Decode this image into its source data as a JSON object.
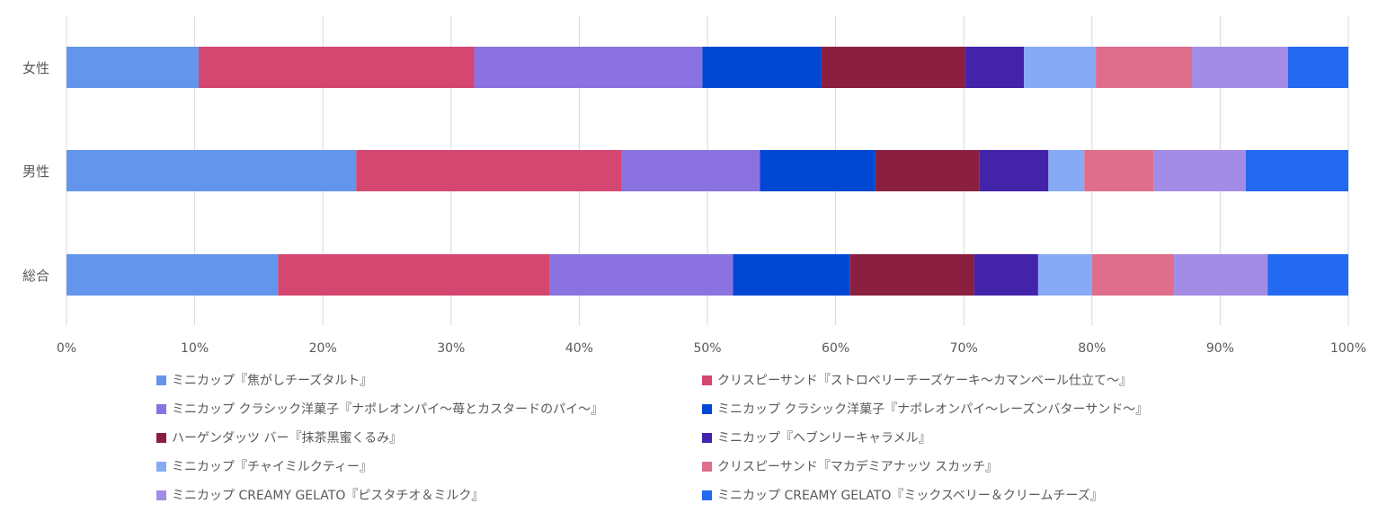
{
  "chart_data": {
    "type": "bar",
    "orientation": "horizontal",
    "stacked": "percent",
    "categories": [
      "女性",
      "男性",
      "総合"
    ],
    "x_tick_labels": [
      "0%",
      "10%",
      "20%",
      "30%",
      "40%",
      "50%",
      "60%",
      "70%",
      "80%",
      "90%",
      "100%"
    ],
    "xlim": [
      0,
      100
    ],
    "grid": true,
    "legend_position": "bottom",
    "series": [
      {
        "name": "ミニカップ『焦がしチーズタルト』",
        "color": "#6495ED",
        "values": [
          10.3,
          22.6,
          16.5
        ]
      },
      {
        "name": "クリスピーサンド『ストロベリーチーズケーキ〜カマンベール仕立て〜』",
        "color": "#D44770",
        "values": [
          21.5,
          20.7,
          21.2
        ]
      },
      {
        "name": "ミニカップ クラシック洋菓子『ナポレオンパイ〜苺とカスタードのパイ〜』",
        "color": "#8A72E0",
        "values": [
          17.8,
          10.8,
          14.3
        ]
      },
      {
        "name": "ミニカップ クラシック洋菓子『ナポレオンパイ〜レーズンバターサンド〜』",
        "color": "#0047D4",
        "values": [
          9.3,
          9.0,
          9.1
        ]
      },
      {
        "name": "ハーゲンダッツ バー『抹茶黒蜜くるみ』",
        "color": "#8B1F3F",
        "values": [
          11.2,
          8.1,
          9.7
        ]
      },
      {
        "name": "ミニカップ『ヘブンリーキャラメル』",
        "color": "#4223AA",
        "values": [
          4.6,
          5.4,
          5.0
        ]
      },
      {
        "name": "ミニカップ『チャイミルクティー』",
        "color": "#86AAF5",
        "values": [
          5.6,
          2.8,
          4.2
        ]
      },
      {
        "name": "クリスピーサンド『マカデミアナッツ スカッチ』",
        "color": "#DF6E8C",
        "values": [
          7.5,
          5.4,
          6.4
        ]
      },
      {
        "name": "ミニカップ CREAMY GELATO『ピスタチオ＆ミルク』",
        "color": "#A28CE6",
        "values": [
          7.5,
          7.2,
          7.3
        ]
      },
      {
        "name": "ミニカップ CREAMY GELATO『ミックスベリー＆クリームチーズ』",
        "color": "#2469F2",
        "values": [
          4.7,
          8.0,
          6.3
        ]
      }
    ]
  }
}
